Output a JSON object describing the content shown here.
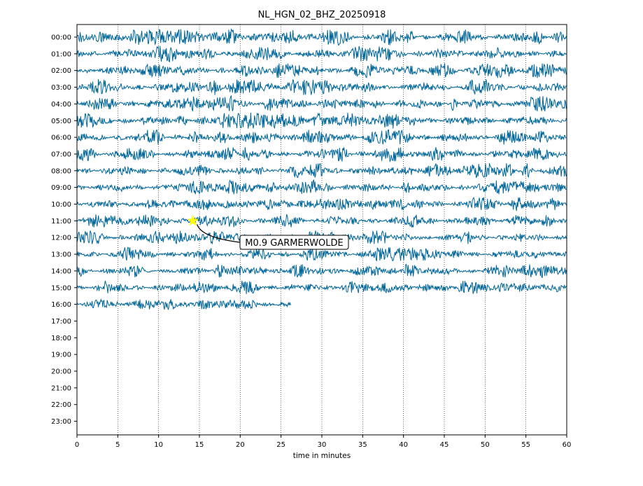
{
  "chart_data": {
    "type": "line",
    "title": "NL_HGN_02_BHZ_20250918",
    "xlabel": "time in minutes",
    "ylabel": "",
    "xlim": [
      0,
      60
    ],
    "x_ticks": [
      0,
      5,
      10,
      15,
      20,
      25,
      30,
      35,
      40,
      45,
      50,
      55,
      60
    ],
    "hour_labels": [
      "00:00",
      "01:00",
      "02:00",
      "03:00",
      "04:00",
      "05:00",
      "06:00",
      "07:00",
      "08:00",
      "09:00",
      "10:00",
      "11:00",
      "12:00",
      "13:00",
      "14:00",
      "15:00",
      "16:00",
      "17:00",
      "18:00",
      "19:00",
      "20:00",
      "21:00",
      "22:00",
      "23:00"
    ],
    "grid": "vertical dotted at x ticks",
    "trace_color": "#006699",
    "series": [
      {
        "hour": "00:00",
        "x_end": 60,
        "amplitude": 0.3
      },
      {
        "hour": "01:00",
        "x_end": 60,
        "amplitude": 0.3
      },
      {
        "hour": "02:00",
        "x_end": 60,
        "amplitude": 0.28
      },
      {
        "hour": "03:00",
        "x_end": 60,
        "amplitude": 0.3
      },
      {
        "hour": "04:00",
        "x_end": 60,
        "amplitude": 0.3
      },
      {
        "hour": "05:00",
        "x_end": 60,
        "amplitude": 0.3
      },
      {
        "hour": "06:00",
        "x_end": 60,
        "amplitude": 0.28
      },
      {
        "hour": "07:00",
        "x_end": 60,
        "amplitude": 0.28
      },
      {
        "hour": "08:00",
        "x_end": 60,
        "amplitude": 0.28
      },
      {
        "hour": "09:00",
        "x_end": 60,
        "amplitude": 0.28
      },
      {
        "hour": "10:00",
        "x_end": 60,
        "amplitude": 0.26
      },
      {
        "hour": "11:00",
        "x_end": 60,
        "amplitude": 0.26
      },
      {
        "hour": "12:00",
        "x_end": 60,
        "amplitude": 0.26
      },
      {
        "hour": "13:00",
        "x_end": 60,
        "amplitude": 0.26
      },
      {
        "hour": "14:00",
        "x_end": 60,
        "amplitude": 0.26
      },
      {
        "hour": "15:00",
        "x_end": 60,
        "amplitude": 0.26
      },
      {
        "hour": "16:00",
        "x_end": 26.3,
        "amplitude": 0.2
      }
    ],
    "annotations": [
      {
        "text": "M0.9 GARMERWOLDE",
        "marker": "star",
        "marker_color": "#ffff00",
        "x": 14.2,
        "hour": "11:00"
      }
    ]
  }
}
